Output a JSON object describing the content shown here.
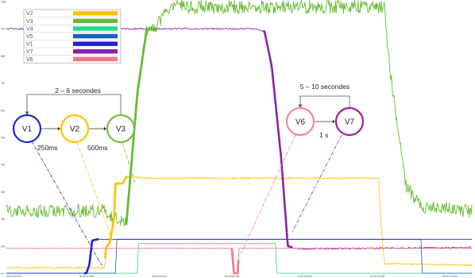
{
  "chart_data": {
    "type": "line",
    "title": "",
    "xlabel": "",
    "ylabel": "",
    "xlim": [
      0,
      64
    ],
    "ylim": [
      0,
      1000
    ],
    "grid": false,
    "legend_position": "top-left",
    "y_ticks": [
      {
        "value": 0,
        "label": "0.0"
      },
      {
        "value": 100,
        "label": "100"
      },
      {
        "value": 200,
        "label": "200"
      },
      {
        "value": 300,
        "label": "300"
      },
      {
        "value": 400,
        "label": "400"
      },
      {
        "value": 500,
        "label": "500"
      },
      {
        "value": 600,
        "label": "600"
      },
      {
        "value": 700,
        "label": "700"
      },
      {
        "value": 800,
        "label": "800"
      },
      {
        "value": 900,
        "label": "900"
      },
      {
        "value": 1000,
        "label": "1000"
      }
    ],
    "x_ticks": [
      {
        "value": 0,
        "label": "00:00:00.000"
      },
      {
        "value": 10,
        "label": "00:00:02.000"
      },
      {
        "value": 20,
        "label": "00:00:04.000"
      },
      {
        "value": 30,
        "label": "00:00:06.000"
      },
      {
        "value": 40,
        "label": "00:00:08.000"
      },
      {
        "value": 50,
        "label": "00:00:10.000"
      },
      {
        "value": 60,
        "label": "00:00:12.000"
      }
    ],
    "legend": [
      {
        "name": "V2",
        "color": "#ffc000"
      },
      {
        "name": "V3",
        "color": "#66bb33"
      },
      {
        "name": "V4",
        "color": "#22dd88"
      },
      {
        "name": "V5",
        "color": "#1166bb"
      },
      {
        "name": "V1",
        "color": "#2222cc"
      },
      {
        "name": "V7",
        "color": "#8822aa"
      },
      {
        "name": "V6",
        "color": "#ee7788"
      }
    ],
    "series": [
      {
        "name": "V2",
        "color": "#ffc000",
        "values": [
          [
            0,
            20
          ],
          [
            13.5,
            20
          ],
          [
            13.7,
            95
          ],
          [
            14.2,
            110
          ],
          [
            14.8,
            200
          ],
          [
            15,
            330
          ],
          [
            16,
            330
          ],
          [
            16.5,
            355
          ],
          [
            20,
            350
          ],
          [
            51.2,
            350
          ],
          [
            51.5,
            180
          ],
          [
            52,
            35
          ],
          [
            64,
            30
          ]
        ]
      },
      {
        "name": "V3",
        "color": "#66bb33",
        "values": [
          [
            0,
            230
          ],
          [
            13.5,
            230
          ],
          [
            16.5,
            180
          ],
          [
            18,
            660
          ],
          [
            19.3,
            900
          ],
          [
            20.5,
            895
          ],
          [
            22,
            980
          ],
          [
            52,
            980
          ],
          [
            52.7,
            750
          ],
          [
            55,
            320
          ],
          [
            57,
            240
          ],
          [
            64,
            230
          ]
        ]
      },
      {
        "name": "V4",
        "color": "#22dd88",
        "values": [
          [
            0,
            0
          ],
          [
            18,
            0
          ],
          [
            18.2,
            110
          ],
          [
            37,
            110
          ],
          [
            37.2,
            0
          ],
          [
            64,
            0
          ]
        ]
      },
      {
        "name": "V5",
        "color": "#1166bb",
        "values": [
          [
            0,
            0
          ],
          [
            15,
            0
          ],
          [
            15.2,
            125
          ],
          [
            57,
            125
          ],
          [
            57.2,
            0
          ],
          [
            64,
            0
          ]
        ]
      },
      {
        "name": "V1",
        "color": "#2222cc",
        "values": [
          [
            0,
            0
          ],
          [
            10,
            0
          ],
          [
            11,
            0
          ],
          [
            11.4,
            30
          ],
          [
            11.8,
            120
          ],
          [
            12.5,
            125
          ],
          [
            13,
            125
          ],
          [
            64,
            125
          ]
        ]
      },
      {
        "name": "V7",
        "color": "#8822aa",
        "values": [
          [
            0,
            900
          ],
          [
            34,
            900
          ],
          [
            35.5,
            890
          ],
          [
            36.5,
            760
          ],
          [
            37.8,
            420
          ],
          [
            38.7,
            100
          ],
          [
            40,
            90
          ],
          [
            64,
            95
          ]
        ]
      },
      {
        "name": "V6",
        "color": "#ee7788",
        "values": [
          [
            0,
            92
          ],
          [
            30.5,
            92
          ],
          [
            31,
            90
          ],
          [
            31.3,
            0
          ],
          [
            31.8,
            0
          ],
          [
            32,
            92
          ],
          [
            64,
            92
          ]
        ]
      }
    ],
    "annotations": {
      "group_left_duration": "2 – 6 secondes",
      "group_right_duration": "5 – 10 secondes",
      "nodes": [
        {
          "label": "V1",
          "color": "#1a2ad0"
        },
        {
          "label": "V2",
          "color": "#ffc000"
        },
        {
          "label": "V3",
          "color": "#77bb44"
        },
        {
          "label": "V6",
          "color": "#f08898"
        },
        {
          "label": "V7",
          "color": "#99229a"
        }
      ],
      "delay_v1_v2": "250ms",
      "delay_v2_v3": "500ms",
      "delay_v6_v7": "1 s"
    }
  }
}
